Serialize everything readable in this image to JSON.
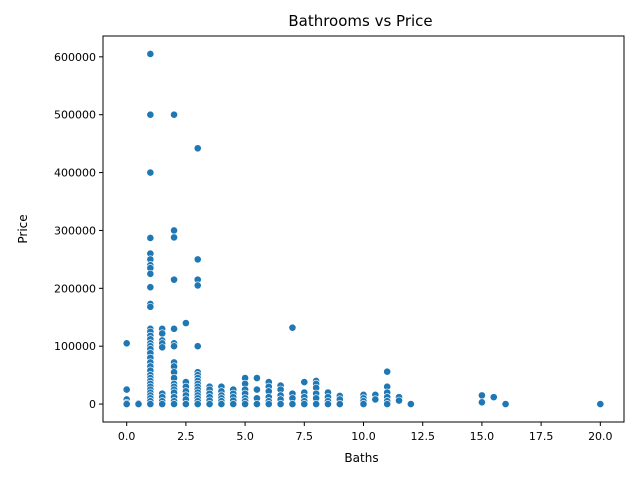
{
  "chart_data": {
    "type": "scatter",
    "title": "Bathrooms vs Price",
    "xlabel": "Baths",
    "ylabel": "Price",
    "xlim": [
      -1,
      21
    ],
    "ylim": [
      -31000,
      636000
    ],
    "xticks": [
      0.0,
      2.5,
      5.0,
      7.5,
      10.0,
      12.5,
      15.0,
      17.5,
      20.0
    ],
    "xtick_labels": [
      "0.0",
      "2.5",
      "5.0",
      "7.5",
      "10.0",
      "12.5",
      "15.0",
      "17.5",
      "20.0"
    ],
    "yticks": [
      0,
      100000,
      200000,
      300000,
      400000,
      500000,
      600000
    ],
    "ytick_labels": [
      "0",
      "100000",
      "200000",
      "300000",
      "400000",
      "500000",
      "600000"
    ],
    "grid": false,
    "marker_color": "#1f77b4",
    "points": [
      [
        0,
        105000
      ],
      [
        0,
        25000
      ],
      [
        0,
        8000
      ],
      [
        0,
        2000
      ],
      [
        0,
        0
      ],
      [
        0.5,
        1500
      ],
      [
        0.5,
        0
      ],
      [
        1,
        605000
      ],
      [
        1,
        500000
      ],
      [
        1,
        400000
      ],
      [
        1,
        287000
      ],
      [
        1,
        260000
      ],
      [
        1,
        250000
      ],
      [
        1,
        240000
      ],
      [
        1,
        235000
      ],
      [
        1,
        225000
      ],
      [
        1,
        202000
      ],
      [
        1,
        173000
      ],
      [
        1,
        168000
      ],
      [
        1,
        130000
      ],
      [
        1,
        125000
      ],
      [
        1,
        118000
      ],
      [
        1,
        112000
      ],
      [
        1,
        105000
      ],
      [
        1,
        100000
      ],
      [
        1,
        95000
      ],
      [
        1,
        88000
      ],
      [
        1,
        80000
      ],
      [
        1,
        72000
      ],
      [
        1,
        65000
      ],
      [
        1,
        58000
      ],
      [
        1,
        50000
      ],
      [
        1,
        45000
      ],
      [
        1,
        40000
      ],
      [
        1,
        35000
      ],
      [
        1,
        30000
      ],
      [
        1,
        25000
      ],
      [
        1,
        20000
      ],
      [
        1,
        15000
      ],
      [
        1,
        10000
      ],
      [
        1,
        5000
      ],
      [
        1,
        0
      ],
      [
        1.5,
        130000
      ],
      [
        1.5,
        122000
      ],
      [
        1.5,
        110000
      ],
      [
        1.5,
        105000
      ],
      [
        1.5,
        98000
      ],
      [
        1.5,
        18000
      ],
      [
        1.5,
        12000
      ],
      [
        1.5,
        5000
      ],
      [
        1.5,
        0
      ],
      [
        2,
        500000
      ],
      [
        2,
        300000
      ],
      [
        2,
        288000
      ],
      [
        2,
        215000
      ],
      [
        2,
        130000
      ],
      [
        2,
        105000
      ],
      [
        2,
        100000
      ],
      [
        2,
        72000
      ],
      [
        2,
        65000
      ],
      [
        2,
        55000
      ],
      [
        2,
        45000
      ],
      [
        2,
        35000
      ],
      [
        2,
        30000
      ],
      [
        2,
        25000
      ],
      [
        2,
        20000
      ],
      [
        2,
        12000
      ],
      [
        2,
        5000
      ],
      [
        2,
        0
      ],
      [
        2.5,
        140000
      ],
      [
        2.5,
        38000
      ],
      [
        2.5,
        30000
      ],
      [
        2.5,
        22000
      ],
      [
        2.5,
        15000
      ],
      [
        2.5,
        8000
      ],
      [
        2.5,
        0
      ],
      [
        3,
        442000
      ],
      [
        3,
        250000
      ],
      [
        3,
        215000
      ],
      [
        3,
        205000
      ],
      [
        3,
        100000
      ],
      [
        3,
        55000
      ],
      [
        3,
        50000
      ],
      [
        3,
        45000
      ],
      [
        3,
        40000
      ],
      [
        3,
        35000
      ],
      [
        3,
        30000
      ],
      [
        3,
        25000
      ],
      [
        3,
        20000
      ],
      [
        3,
        15000
      ],
      [
        3,
        10000
      ],
      [
        3,
        5000
      ],
      [
        3,
        0
      ],
      [
        3.5,
        30000
      ],
      [
        3.5,
        25000
      ],
      [
        3.5,
        18000
      ],
      [
        3.5,
        12000
      ],
      [
        3.5,
        6000
      ],
      [
        3.5,
        0
      ],
      [
        4,
        30000
      ],
      [
        4,
        22000
      ],
      [
        4,
        15000
      ],
      [
        4,
        10000
      ],
      [
        4,
        5000
      ],
      [
        4,
        0
      ],
      [
        4.5,
        25000
      ],
      [
        4.5,
        18000
      ],
      [
        4.5,
        12000
      ],
      [
        4.5,
        6000
      ],
      [
        4.5,
        0
      ],
      [
        5,
        45000
      ],
      [
        5,
        35000
      ],
      [
        5,
        25000
      ],
      [
        5,
        18000
      ],
      [
        5,
        10000
      ],
      [
        5,
        5000
      ],
      [
        5,
        0
      ],
      [
        5.5,
        45000
      ],
      [
        5.5,
        25000
      ],
      [
        5.5,
        10000
      ],
      [
        5.5,
        0
      ],
      [
        6,
        38000
      ],
      [
        6,
        30000
      ],
      [
        6,
        22000
      ],
      [
        6,
        12000
      ],
      [
        6,
        5000
      ],
      [
        6,
        0
      ],
      [
        6.5,
        32000
      ],
      [
        6.5,
        25000
      ],
      [
        6.5,
        15000
      ],
      [
        6.5,
        8000
      ],
      [
        6.5,
        0
      ],
      [
        7,
        132000
      ],
      [
        7,
        18000
      ],
      [
        7,
        10000
      ],
      [
        7,
        0
      ],
      [
        7.5,
        38000
      ],
      [
        7.5,
        20000
      ],
      [
        7.5,
        12000
      ],
      [
        7.5,
        5000
      ],
      [
        7.5,
        0
      ],
      [
        8,
        40000
      ],
      [
        8,
        35000
      ],
      [
        8,
        28000
      ],
      [
        8,
        18000
      ],
      [
        8,
        10000
      ],
      [
        8,
        0
      ],
      [
        8.5,
        20000
      ],
      [
        8.5,
        12000
      ],
      [
        8.5,
        5000
      ],
      [
        8.5,
        0
      ],
      [
        9,
        14000
      ],
      [
        9,
        8000
      ],
      [
        9,
        0
      ],
      [
        10,
        16000
      ],
      [
        10,
        10000
      ],
      [
        10,
        5000
      ],
      [
        10,
        0
      ],
      [
        10.5,
        16000
      ],
      [
        10.5,
        8000
      ],
      [
        11,
        56000
      ],
      [
        11,
        30000
      ],
      [
        11,
        20000
      ],
      [
        11,
        12000
      ],
      [
        11,
        5000
      ],
      [
        11,
        0
      ],
      [
        11.5,
        12000
      ],
      [
        11.5,
        6000
      ],
      [
        12,
        0
      ],
      [
        15,
        15000
      ],
      [
        15,
        3000
      ],
      [
        15.5,
        12000
      ],
      [
        16,
        0
      ],
      [
        20,
        0
      ]
    ]
  }
}
